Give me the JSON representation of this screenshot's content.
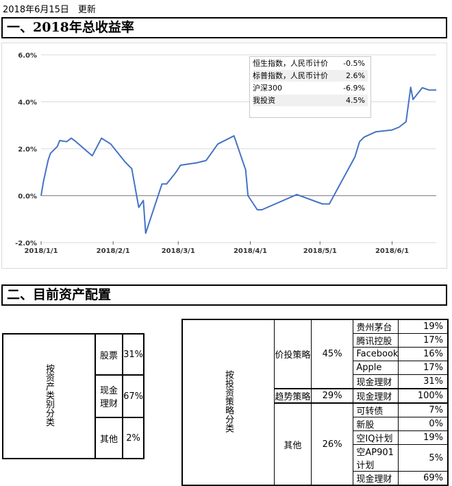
{
  "update_text": "2018年6月15日　更新",
  "section1_title": "一、2018年总收益率",
  "section2_title": "二、目前资产配置",
  "colors": {
    "line": "#4472c4",
    "grid": "#d9d9d9",
    "zero_line": "#7f7f7f"
  },
  "chart_data": {
    "type": "line",
    "title": "",
    "xlabel": "",
    "ylabel": "",
    "x_ticks": [
      "2018/1/1",
      "2018/2/1",
      "2018/3/1",
      "2018/4/1",
      "2018/5/1",
      "2018/6/1"
    ],
    "y_ticks": [
      "-2.0%",
      "0.0%",
      "2.0%",
      "4.0%",
      "6.0%"
    ],
    "ylim": [
      -2.0,
      6.0
    ],
    "grid": "horizontal",
    "series": [
      {
        "name": "我投资",
        "x": [
          "2018-01-01",
          "2018-01-02",
          "2018-01-04",
          "2018-01-05",
          "2018-01-08",
          "2018-01-09",
          "2018-01-12",
          "2018-01-14",
          "2018-01-16",
          "2018-01-23",
          "2018-01-27",
          "2018-01-31",
          "2018-02-06",
          "2018-02-09",
          "2018-02-12",
          "2018-02-14",
          "2018-02-15",
          "2018-02-22",
          "2018-02-24",
          "2018-02-28",
          "2018-03-02",
          "2018-03-09",
          "2018-03-13",
          "2018-03-18",
          "2018-03-25",
          "2018-03-30",
          "2018-03-31",
          "2018-04-04",
          "2018-04-06",
          "2018-04-21",
          "2018-05-02",
          "2018-05-05",
          "2018-05-16",
          "2018-05-18",
          "2018-05-20",
          "2018-05-25",
          "2018-06-01",
          "2018-06-04",
          "2018-06-07",
          "2018-06-09",
          "2018-06-10",
          "2018-06-14",
          "2018-06-17",
          "2018-06-20"
        ],
        "values": [
          0.0,
          0.6,
          1.5,
          1.8,
          2.1,
          2.35,
          2.3,
          2.45,
          2.3,
          1.7,
          2.45,
          2.2,
          1.45,
          1.15,
          -0.5,
          -0.2,
          -1.6,
          0.5,
          0.5,
          1.0,
          1.3,
          1.4,
          1.5,
          2.2,
          2.55,
          1.1,
          0.0,
          -0.6,
          -0.6,
          0.05,
          -0.35,
          -0.35,
          1.65,
          2.3,
          2.5,
          2.72,
          2.8,
          2.92,
          3.15,
          4.62,
          4.1,
          4.6,
          4.5,
          4.5
        ]
      }
    ],
    "legend": {
      "placement": "top-right",
      "items": [
        {
          "label": "恒生指数，人民币计价",
          "value": "-0.5%"
        },
        {
          "label": "标普指数，人民币计价",
          "value": "2.6%"
        },
        {
          "label": "沪深300",
          "value": "-6.9%"
        },
        {
          "label": "我投资",
          "value": "4.5%"
        }
      ]
    }
  },
  "asset_class_table": {
    "header": "按资产类别分类",
    "rows": [
      {
        "name": "股票",
        "pct": "31%"
      },
      {
        "name": "现金理财",
        "pct": "67%"
      },
      {
        "name": "其他",
        "pct": "2%"
      }
    ]
  },
  "strategy_table": {
    "header": "按投资策略分类",
    "groups": [
      {
        "name": "价投策略",
        "pct": "45%",
        "items": [
          {
            "name": "贵州茅台",
            "pct": "19%"
          },
          {
            "name": "腾讯控股",
            "pct": "17%"
          },
          {
            "name": "Facebook",
            "pct": "16%"
          },
          {
            "name": "Apple",
            "pct": "17%"
          },
          {
            "name": "现金理财",
            "pct": "31%"
          }
        ]
      },
      {
        "name": "趋势策略",
        "pct": "29%",
        "items": [
          {
            "name": "现金理财",
            "pct": "100%"
          }
        ]
      },
      {
        "name": "其他",
        "pct": "26%",
        "items": [
          {
            "name": "可转债",
            "pct": "7%"
          },
          {
            "name": "新股",
            "pct": "0%"
          },
          {
            "name": "空IQ计划",
            "pct": "19%"
          },
          {
            "name": "空AP901计划",
            "pct": "5%"
          },
          {
            "name": "现金理财",
            "pct": "69%"
          }
        ]
      }
    ]
  }
}
